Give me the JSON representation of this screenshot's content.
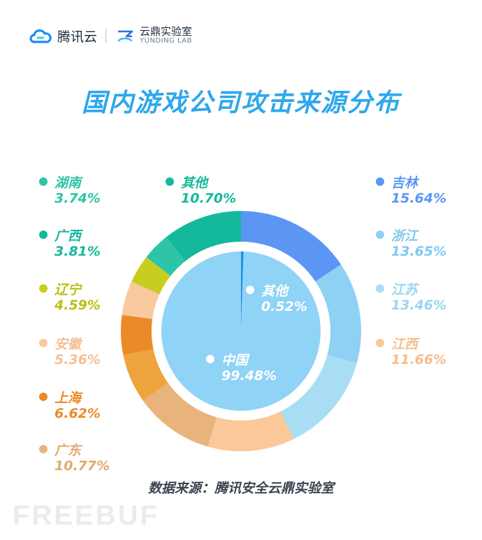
{
  "header": {
    "brand": "腾讯云",
    "lab_cn": "云鼎实验室",
    "lab_en": "YUNDING LAB",
    "brand_color": "#1a8cf5"
  },
  "chart_data": {
    "type": "pie",
    "title": "国内游戏公司攻击来源分布",
    "source": "数据来源：腾讯安全云鼎实验室",
    "outer_ring": [
      {
        "name": "吉林",
        "value": 15.64,
        "label": "15.64%",
        "color": "#5b96f4"
      },
      {
        "name": "浙江",
        "value": 13.65,
        "label": "13.65%",
        "color": "#8fd0f5"
      },
      {
        "name": "江苏",
        "value": 13.46,
        "label": "13.46%",
        "color": "#a9ddf4"
      },
      {
        "name": "江西",
        "value": 11.66,
        "label": "11.66%",
        "color": "#fbc89a"
      },
      {
        "name": "广东",
        "value": 10.77,
        "label": "10.77%",
        "color": "#e9b47c"
      },
      {
        "name": "上海",
        "value": 6.62,
        "label": "6.62%",
        "color": "#eea43c"
      },
      {
        "name": "安徽",
        "value": 5.36,
        "label": "5.36%",
        "color": "#ec8a27"
      },
      {
        "name": "辽宁",
        "value": 4.59,
        "label": "4.59%",
        "color": "#f9c9a0"
      },
      {
        "name": "广西",
        "value": 3.81,
        "label": "3.81%",
        "color": "#c9cd20"
      },
      {
        "name": "湖南",
        "value": 3.74,
        "label": "3.74%",
        "color": "#2ec4a8"
      },
      {
        "name": "其他",
        "value": 10.7,
        "label": "10.70%",
        "color": "#14b99b"
      }
    ],
    "inner_pie": [
      {
        "name": "其他",
        "value": 0.52,
        "label": "0.52%",
        "color": "#1e90e8"
      },
      {
        "name": "中国",
        "value": 99.48,
        "label": "99.48%",
        "color": "#8fd3f6"
      }
    ],
    "legend_colors": {
      "吉林": "#5b96f4",
      "浙江": "#8fd0f5",
      "江苏": "#a9ddf4",
      "江西": "#fbc89a",
      "湖南": "#2ec4a8",
      "广西": "#14b99b",
      "辽宁": "#c9cd20",
      "安徽": "#f9c9a0",
      "上海": "#ec8a27",
      "广东": "#e9b47c",
      "其他": "#14b99b"
    }
  },
  "watermark": "FREEBUF"
}
